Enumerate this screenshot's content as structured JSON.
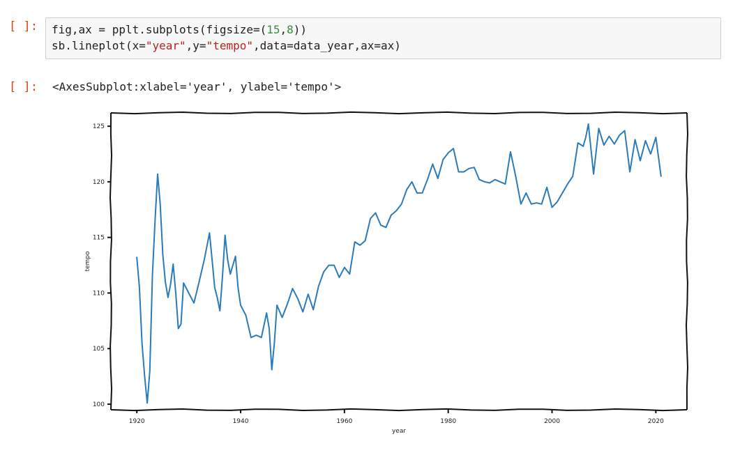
{
  "input_cell": {
    "prompt": "[ ]:",
    "line1": {
      "a": "fig,ax = pplt.subplots(figsize=(",
      "n1": "15",
      "b": ",",
      "n2": "8",
      "c": "))"
    },
    "line2": {
      "a": "sb.lineplot(x=",
      "s1": "\"year\"",
      "b": ",y=",
      "s2": "\"tempo\"",
      "c": ",data=data_year,ax=ax)"
    }
  },
  "output_cell": {
    "prompt": "[ ]:",
    "text": "<AxesSubplot:xlabel='year', ylabel='tempo'>"
  },
  "colors": {
    "prompt": "#d84315",
    "line": "#2b7bba",
    "number": "#388e3c",
    "string": "#ba2121"
  },
  "chart_data": {
    "type": "line",
    "title": "",
    "xlabel": "year",
    "ylabel": "tempo",
    "xlim": [
      1915,
      2026
    ],
    "ylim": [
      99.5,
      126.2
    ],
    "xticks": [
      1920,
      1940,
      1960,
      1980,
      2000,
      2020
    ],
    "yticks": [
      100,
      105,
      110,
      115,
      120,
      125
    ],
    "grid": false,
    "series": [
      {
        "x": [
          1920,
          1920.5,
          1921,
          1921.5,
          1922,
          1922.5,
          1923,
          1923.5,
          1924,
          1924.5,
          1925,
          1925.5,
          1926,
          1926.5,
          1927,
          1927.5,
          1928,
          1928.5,
          1929,
          1930,
          1931,
          1932,
          1933,
          1934,
          1934.5,
          1935,
          1935.5,
          1936,
          1936.5,
          1937,
          1937.5,
          1938,
          1938.5,
          1939,
          1939.5,
          1940,
          1941,
          1942,
          1943,
          1944,
          1945,
          1945.5,
          1946,
          1946.5,
          1947,
          1948,
          1949,
          1950,
          1951,
          1952,
          1953,
          1954,
          1955,
          1956,
          1957,
          1958,
          1959,
          1960,
          1961,
          1962,
          1963,
          1964,
          1965,
          1966,
          1967,
          1968,
          1969,
          1970,
          1971,
          1972,
          1973,
          1974,
          1975,
          1976,
          1977,
          1978,
          1979,
          1980,
          1981,
          1982,
          1983,
          1984,
          1985,
          1986,
          1987,
          1988,
          1989,
          1990,
          1991,
          1992,
          1993,
          1994,
          1995,
          1996,
          1997,
          1998,
          1999,
          2000,
          2001,
          2002,
          2003,
          2004,
          2005,
          2006,
          2006.5,
          2007,
          2008,
          2009,
          2010,
          2011,
          2012,
          2013,
          2014,
          2015,
          2016,
          2017,
          2018,
          2019,
          2020,
          2021
        ],
        "y": [
          113.2,
          110.5,
          105.5,
          102.5,
          100.1,
          103.0,
          111.5,
          116.5,
          120.7,
          118.0,
          113.5,
          111.0,
          109.6,
          110.8,
          112.6,
          110.0,
          106.8,
          107.2,
          110.9,
          110.0,
          109.1,
          111.0,
          113.0,
          115.4,
          113.0,
          110.5,
          109.6,
          108.4,
          111.5,
          115.2,
          113.0,
          111.7,
          112.5,
          113.3,
          110.5,
          108.9,
          108.0,
          106.0,
          106.2,
          106.0,
          108.2,
          106.8,
          103.1,
          105.5,
          108.9,
          107.8,
          109.0,
          110.4,
          109.5,
          108.3,
          109.9,
          108.5,
          110.6,
          111.9,
          112.5,
          112.5,
          111.4,
          112.3,
          111.7,
          114.6,
          114.3,
          114.7,
          116.7,
          117.2,
          116.1,
          115.9,
          117.0,
          117.4,
          118.0,
          119.3,
          120.0,
          119.0,
          119.0,
          120.2,
          121.6,
          120.3,
          122.0,
          122.6,
          123.0,
          120.9,
          120.9,
          121.2,
          121.3,
          120.2,
          120.0,
          119.9,
          120.2,
          120.0,
          119.8,
          122.7,
          120.5,
          118.0,
          119.0,
          118.0,
          118.1,
          118.0,
          119.5,
          117.7,
          118.2,
          119.0,
          119.8,
          120.5,
          123.5,
          123.2,
          124.0,
          125.2,
          120.7,
          124.8,
          123.3,
          124.1,
          123.4,
          124.2,
          124.6,
          120.9,
          123.8,
          121.9,
          123.7,
          122.5,
          124.0,
          120.5
        ]
      }
    ]
  }
}
